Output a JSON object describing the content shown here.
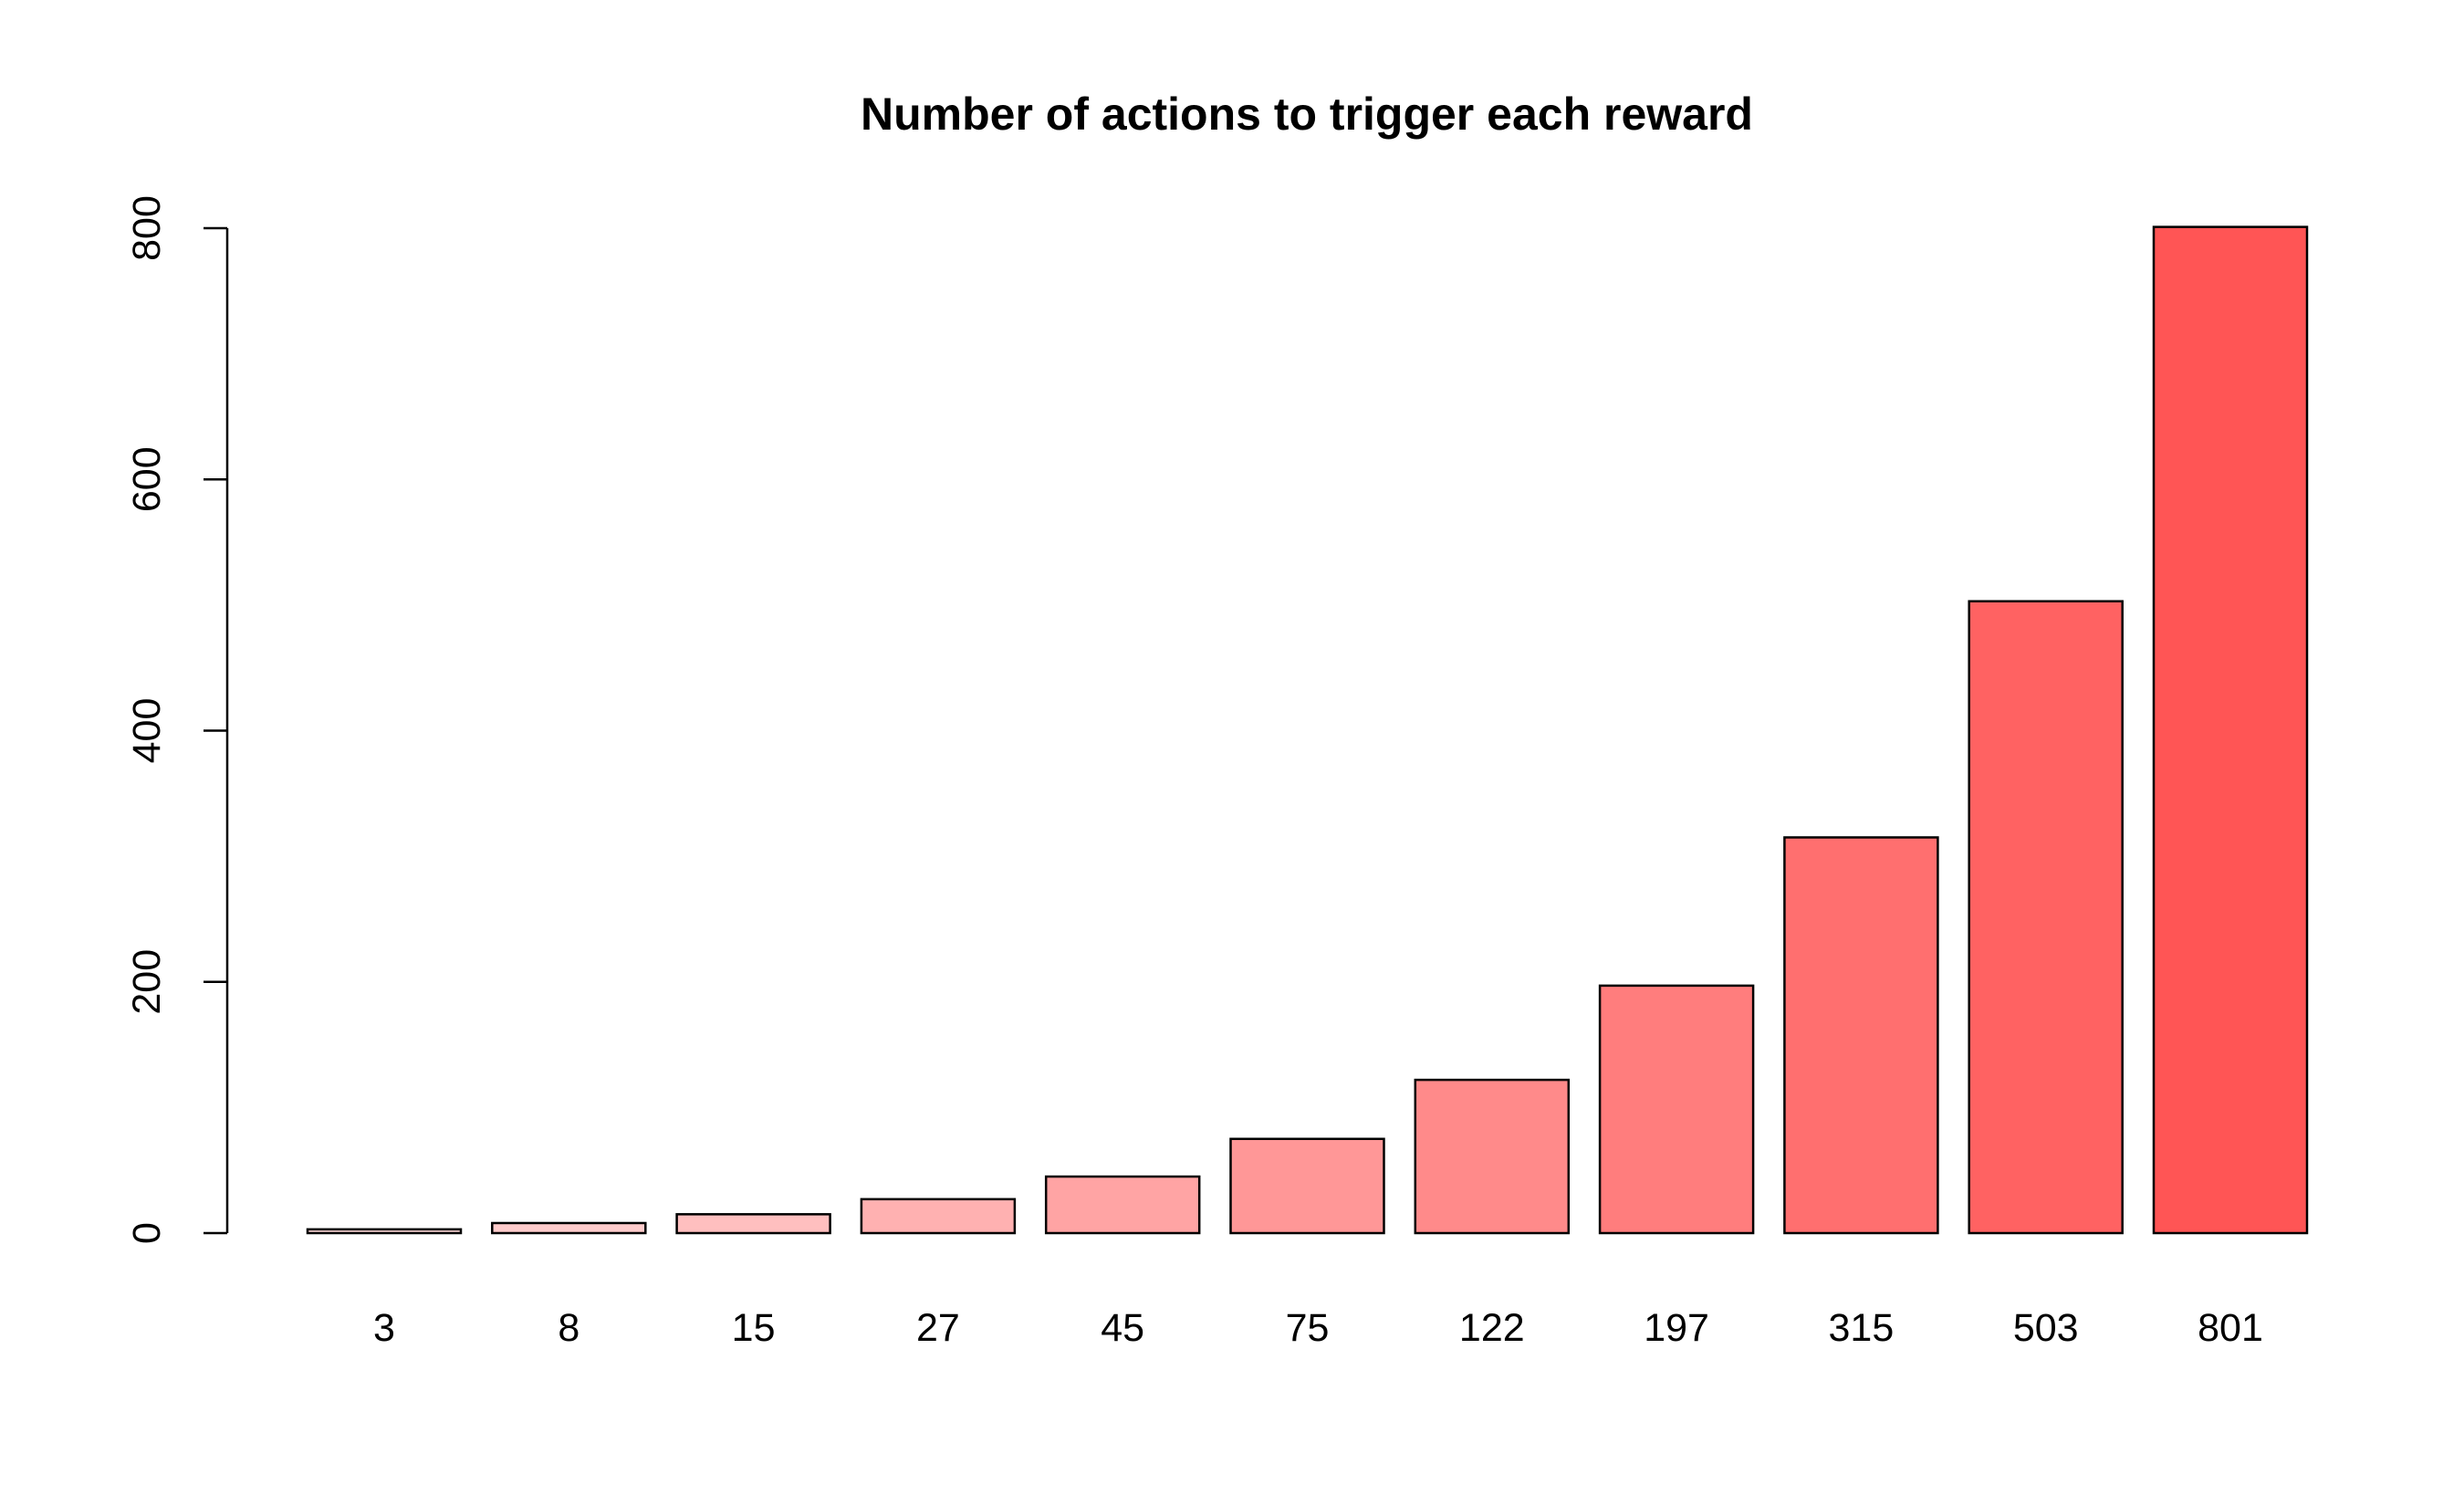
{
  "chart_data": {
    "type": "bar",
    "title": "Number of actions to trigger each reward",
    "xlabel": "",
    "ylabel": "",
    "categories": [
      "3",
      "8",
      "15",
      "27",
      "45",
      "75",
      "122",
      "197",
      "315",
      "503",
      "801"
    ],
    "values": [
      3,
      8,
      15,
      27,
      45,
      75,
      122,
      197,
      315,
      503,
      801
    ],
    "ylim": [
      0,
      800
    ],
    "y_ticks": [
      0,
      200,
      400,
      600,
      800
    ],
    "y_tick_labels": [
      "0",
      "200",
      "400",
      "600",
      "800"
    ],
    "grid": false,
    "legend": "none",
    "bar_color_start": "#ffd9d9",
    "bar_color_end": "#ff5555"
  }
}
